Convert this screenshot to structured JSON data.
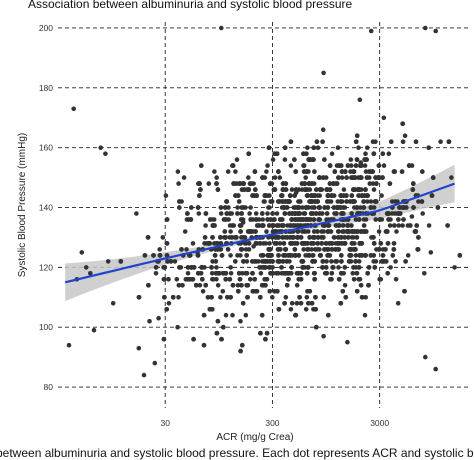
{
  "title": "Association between albuminuria and systolic blood pressure",
  "caption": "between albuminuria and systolic blood pressure. Each dot represents ACR and systolic blo",
  "chart_data": {
    "type": "scatter",
    "xlabel": "ACR (mg/g Crea)",
    "ylabel": "Systolic Blood Pressure (mmHg)",
    "x_scale": "log10",
    "x_ticks": [
      "30",
      "300",
      "3000"
    ],
    "y_ticks": [
      "80",
      "100",
      "120",
      "140",
      "160",
      "180",
      "200"
    ],
    "xlim": [
      3,
      20000
    ],
    "ylim": [
      73,
      202
    ],
    "grid": "dashed, major lines only",
    "point_color": "#333333",
    "trend": {
      "method": "linear fit with confidence band",
      "color": "#2244cc",
      "band_color": "#c8c8c8",
      "points": [
        [
          3.5,
          115
        ],
        [
          30,
          123
        ],
        [
          300,
          131
        ],
        [
          3000,
          139
        ],
        [
          15000,
          148
        ]
      ]
    },
    "points": [
      [
        4.2,
        173
      ],
      [
        5.5,
        120
      ],
      [
        6.0,
        118
      ],
      [
        4.5,
        116
      ],
      [
        5.0,
        125
      ],
      [
        7.5,
        160
      ],
      [
        8.3,
        158
      ],
      [
        3.8,
        94
      ],
      [
        6.5,
        99
      ],
      [
        12,
        72
      ],
      [
        17,
        93
      ],
      [
        19,
        84
      ],
      [
        24,
        88
      ],
      [
        26,
        103
      ],
      [
        40,
        148
      ],
      [
        45,
        150
      ],
      [
        60,
        125
      ],
      [
        100,
        200
      ],
      [
        110,
        130
      ],
      [
        160,
        135
      ],
      [
        200,
        127
      ],
      [
        500,
        145
      ],
      [
        900,
        185
      ],
      [
        2000,
        155
      ],
      [
        3000,
        150
      ],
      [
        6000,
        137
      ],
      [
        9000,
        125
      ],
      [
        14000,
        150
      ],
      [
        15000,
        120
      ],
      [
        8000,
        90
      ],
      [
        10000,
        86
      ],
      [
        900,
        97
      ],
      [
        400,
        110
      ],
      [
        1500,
        95
      ],
      [
        2500,
        199
      ],
      [
        8000,
        200
      ],
      [
        10000,
        199
      ]
    ]
  }
}
